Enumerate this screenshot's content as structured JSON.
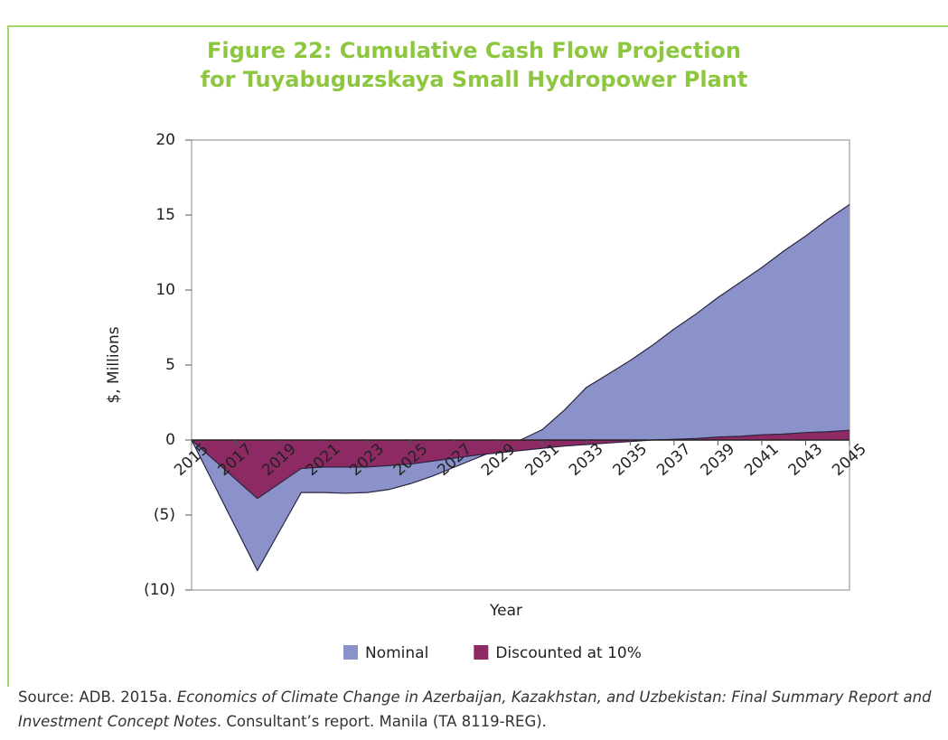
{
  "chart_data": {
    "type": "area",
    "title": [
      "Figure 22: Cumulative Cash Flow Projection",
      "for Tuyabuguzskaya Small Hydropower Plant"
    ],
    "x_label": "Year",
    "y_label": "$, Millions",
    "x": [
      2015,
      2016,
      2017,
      2018,
      2019,
      2020,
      2021,
      2022,
      2023,
      2024,
      2025,
      2026,
      2027,
      2028,
      2029,
      2030,
      2031,
      2032,
      2033,
      2034,
      2035,
      2036,
      2037,
      2038,
      2039,
      2040,
      2041,
      2042,
      2043,
      2044,
      2045
    ],
    "xlim": [
      2015,
      2045
    ],
    "xticks": [
      2015,
      2017,
      2019,
      2021,
      2023,
      2025,
      2027,
      2029,
      2031,
      2033,
      2035,
      2037,
      2039,
      2041,
      2043,
      2045
    ],
    "ylim": [
      -10,
      20
    ],
    "yticks": [
      {
        "value": -10,
        "label": "(10)"
      },
      {
        "value": -5,
        "label": "(5)"
      },
      0,
      5,
      10,
      15,
      20
    ],
    "series": [
      {
        "name": "Nominal",
        "color": "#8a92c9",
        "values": [
          0,
          -2.9,
          -5.8,
          -8.7,
          -6.1,
          -3.5,
          -3.5,
          -3.55,
          -3.5,
          -3.3,
          -2.9,
          -2.4,
          -1.8,
          -1.2,
          -0.6,
          0,
          0.7,
          2.0,
          3.5,
          4.4,
          5.3,
          6.3,
          7.4,
          8.4,
          9.5,
          10.5,
          11.5,
          12.6,
          13.6,
          14.7,
          15.7
        ]
      },
      {
        "name": "Discounted at 10%",
        "color": "#8e2a63",
        "values": [
          0,
          -1.3,
          -2.6,
          -3.9,
          -2.9,
          -1.9,
          -1.8,
          -1.8,
          -1.8,
          -1.7,
          -1.6,
          -1.4,
          -1.2,
          -1.0,
          -0.85,
          -0.7,
          -0.55,
          -0.4,
          -0.3,
          -0.2,
          -0.1,
          0,
          0.05,
          0.1,
          0.2,
          0.25,
          0.35,
          0.4,
          0.5,
          0.55,
          0.65
        ]
      }
    ],
    "legend": "bottom",
    "source": {
      "prefix": "Source: ADB. 2015a. ",
      "italic": "Economics of Climate Change in Azerbaijan, Kazakhstan, and Uzbekistan: Final Summary Report and Investment Concept Notes",
      "suffix": ". Consultant’s report. Manila (TA 8119-REG)."
    }
  }
}
